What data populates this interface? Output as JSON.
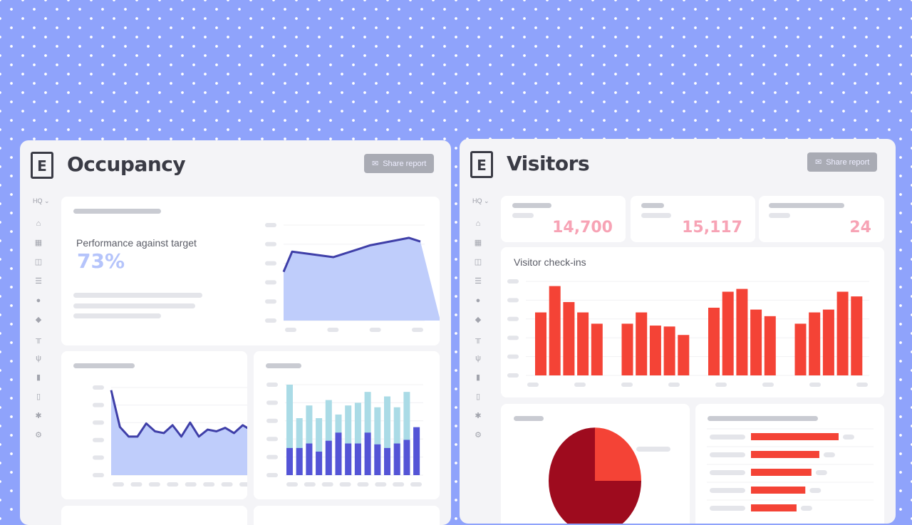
{
  "occupancy": {
    "title": "Occupancy",
    "share_label": "Share report",
    "location": "HQ",
    "performance_label": "Performance against target",
    "performance_value": "73%",
    "performance_fraction": 0.73,
    "sidebar_icons": [
      "home-icon",
      "calendar-icon",
      "map-icon",
      "list-icon",
      "person-icon",
      "box-icon",
      "desk-icon",
      "chair-icon",
      "bar-chart-icon",
      "document-icon",
      "sun-icon",
      "gear-icon"
    ]
  },
  "visitors": {
    "title": "Visitors",
    "share_label": "Share report",
    "location": "HQ",
    "kpis": [
      "14,700",
      "15,117",
      "24"
    ],
    "checkins_label": "Visitor check-ins",
    "sidebar_icons": [
      "home-icon",
      "calendar-icon",
      "map-icon",
      "list-icon",
      "person-icon",
      "box-icon",
      "desk-icon",
      "chair-icon",
      "bar-chart-icon",
      "document-icon",
      "sun-icon",
      "gear-icon"
    ]
  },
  "colors": {
    "bg": "#8fa3fb",
    "accent_blue": "#3f3fa8",
    "area_fill": "#bfcdfb",
    "bar_dark": "#5454d6",
    "bar_light": "#aadbe6",
    "red": "#f44336",
    "dark_red": "#9e0b1e",
    "kpi_pink": "#f7a3b5"
  },
  "chart_data": [
    {
      "type": "area",
      "name": "performance-trend",
      "values": [
        53,
        75,
        69,
        82,
        90,
        86
      ],
      "ylim": [
        0,
        100
      ]
    },
    {
      "type": "area",
      "name": "occupancy-line",
      "values": [
        97,
        55,
        44,
        44,
        59,
        50,
        48,
        57,
        44,
        60,
        44,
        52,
        50,
        54,
        48,
        57,
        51
      ],
      "ylim": [
        0,
        100
      ]
    },
    {
      "type": "bar",
      "name": "stacked-occupancy",
      "series": [
        {
          "name": "dark",
          "values": [
            30,
            30,
            35,
            26,
            38,
            47,
            35,
            35,
            47,
            34,
            30,
            35,
            39,
            53
          ]
        },
        {
          "name": "total",
          "values": [
            100,
            63,
            77,
            63,
            83,
            67,
            77,
            80,
            92,
            75,
            87,
            75,
            92,
            53
          ]
        }
      ],
      "ylim": [
        0,
        100
      ]
    },
    {
      "type": "bar",
      "name": "visitor-checkins",
      "values": [
        67,
        95,
        78,
        67,
        55,
        55,
        67,
        53,
        52,
        43,
        72,
        89,
        92,
        70,
        63,
        55,
        67,
        70,
        89,
        84
      ],
      "ylim": [
        0,
        100
      ],
      "groups": 4
    },
    {
      "type": "pie",
      "name": "visitor-split",
      "values": [
        25,
        75
      ]
    },
    {
      "type": "bar",
      "name": "visitor-ranking",
      "values": [
        100,
        78,
        69,
        62,
        52
      ],
      "ylim": [
        0,
        100
      ]
    }
  ]
}
